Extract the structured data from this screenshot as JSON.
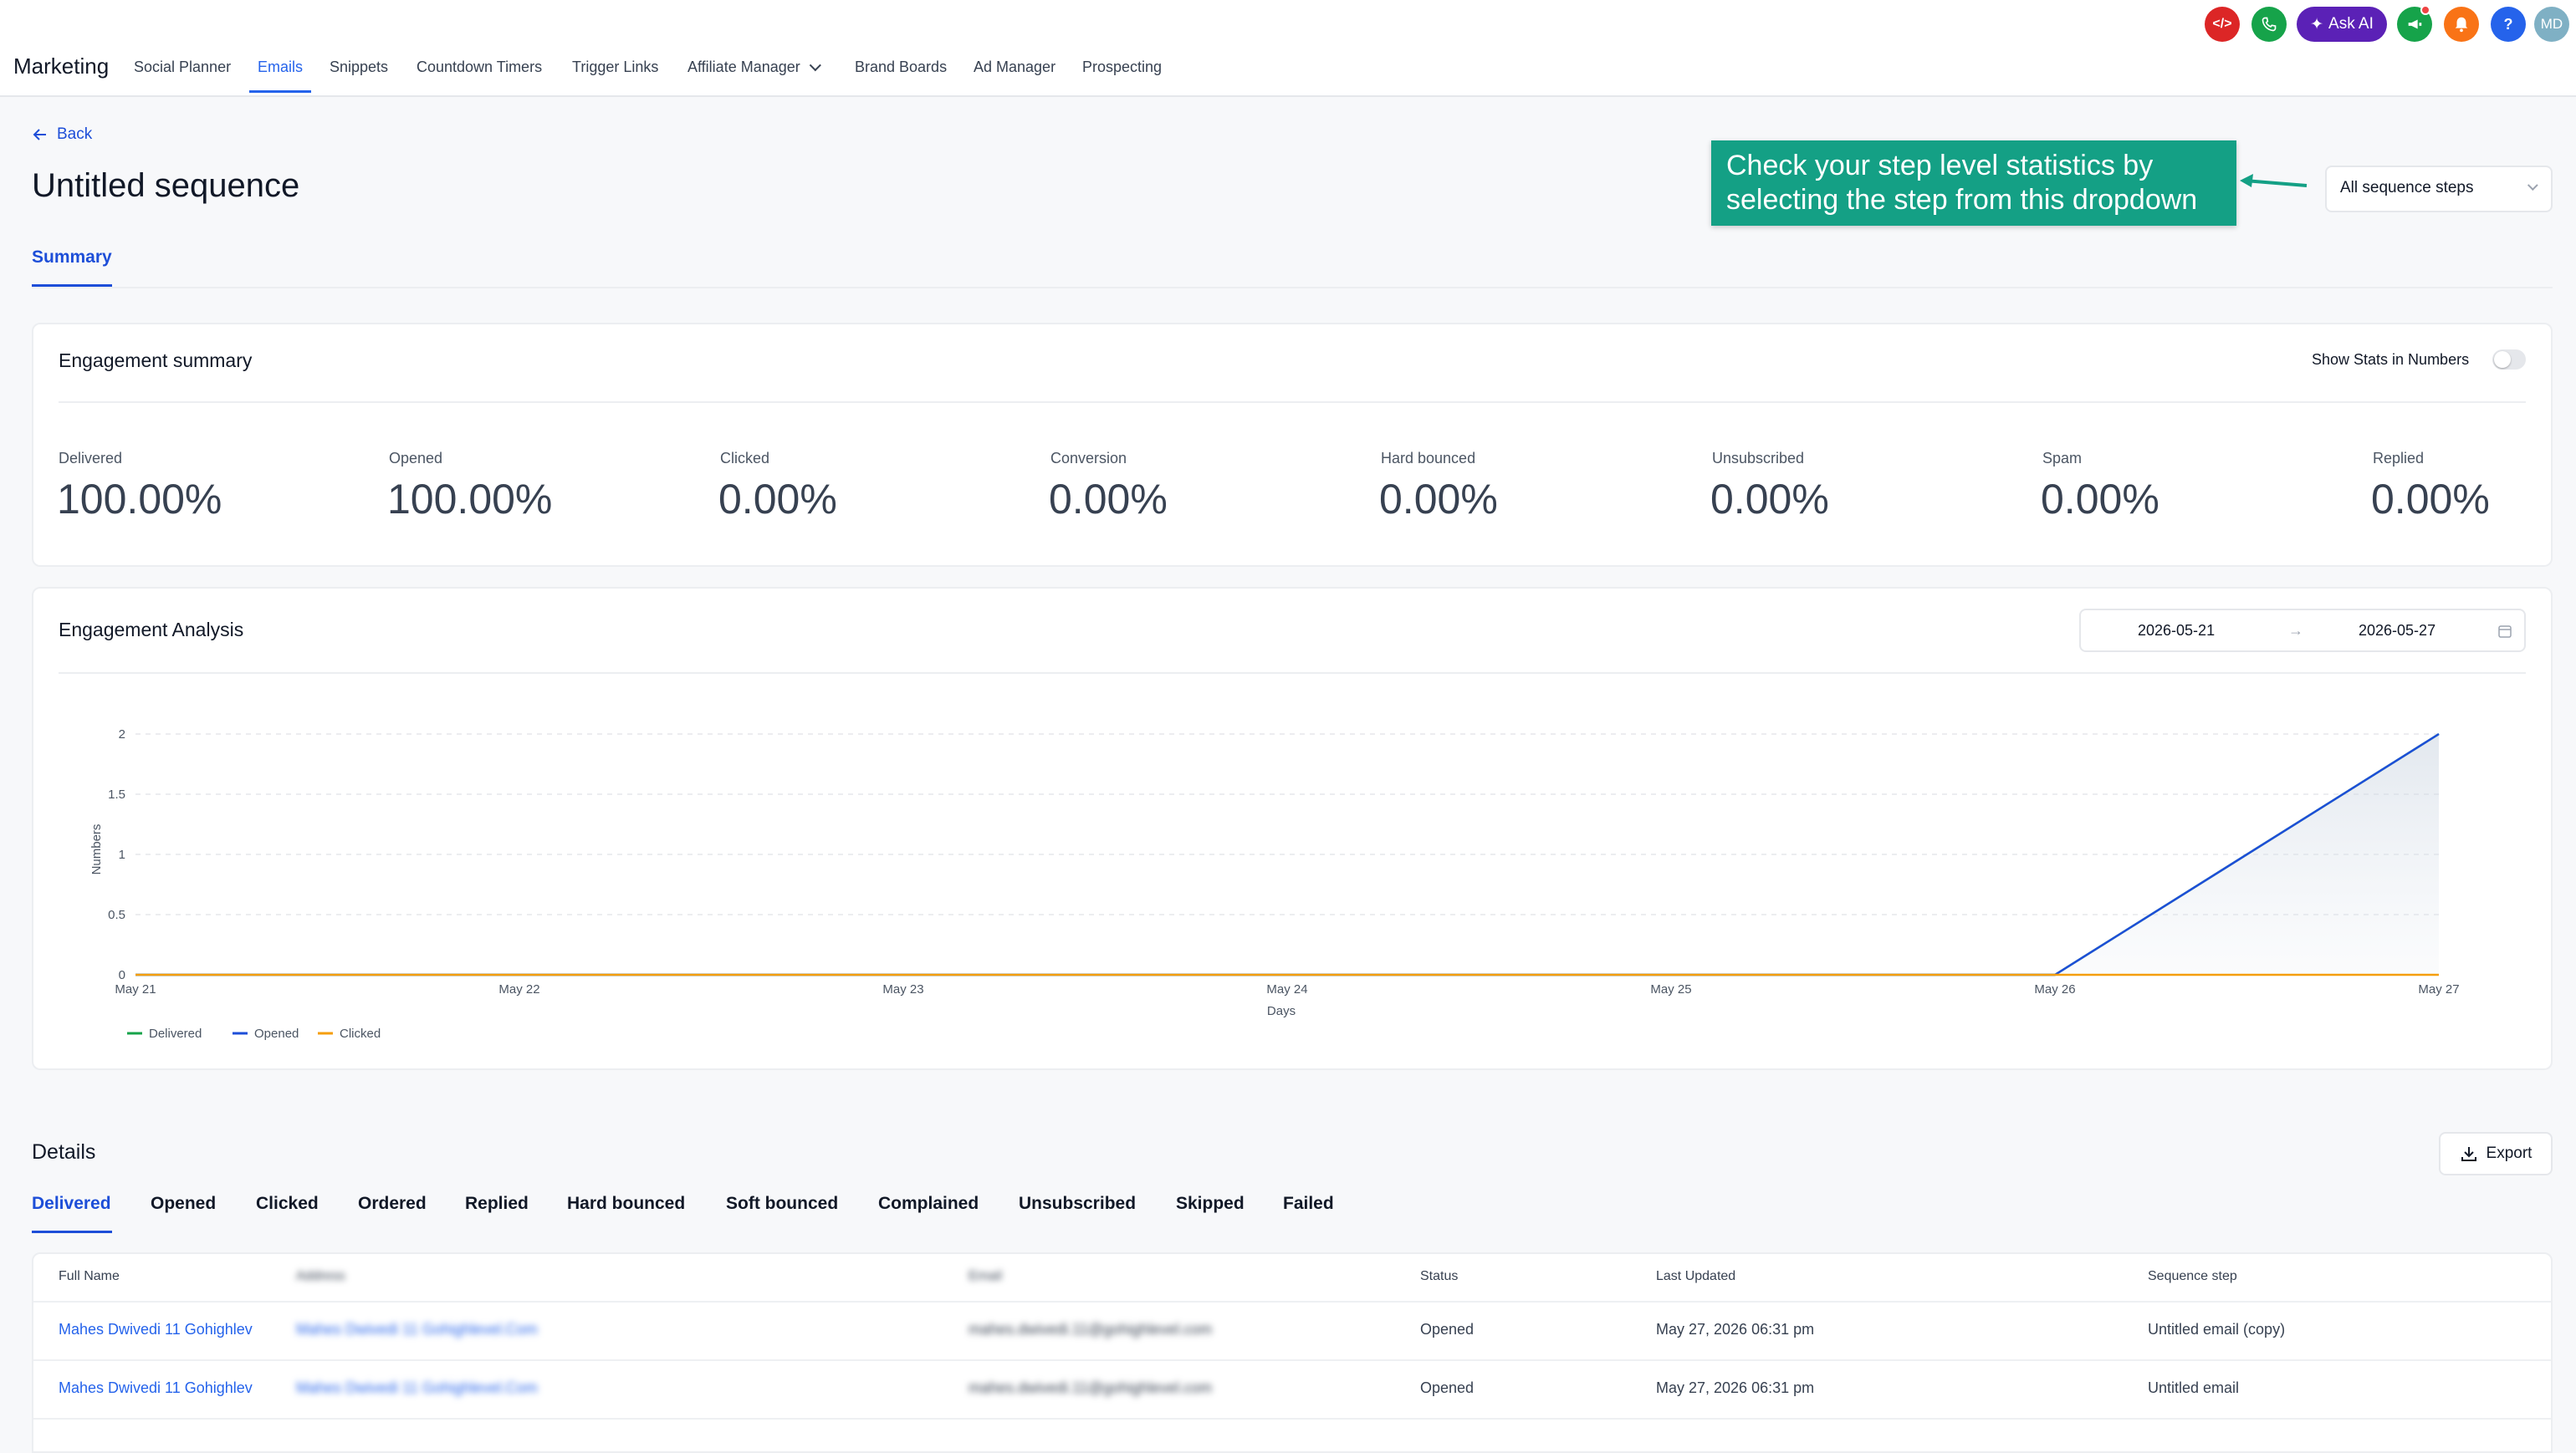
{
  "nav": {
    "brand": "Marketing",
    "items": [
      "Social Planner",
      "Emails",
      "Snippets",
      "Countdown Timers",
      "Trigger Links",
      "Affiliate Manager",
      "Brand Boards",
      "Ad Manager",
      "Prospecting"
    ],
    "active": "Emails",
    "ask_ai": "Ask AI",
    "avatar": "MD",
    "help": "?"
  },
  "header": {
    "back": "Back",
    "title": "Untitled sequence",
    "tab": "Summary",
    "callout": "Check your step level statistics by selecting the step from this dropdown",
    "step_select": "All sequence steps"
  },
  "summary": {
    "title": "Engagement summary",
    "toggle_label": "Show Stats in Numbers",
    "stats": [
      {
        "label": "Delivered",
        "value": "100.00%"
      },
      {
        "label": "Opened",
        "value": "100.00%"
      },
      {
        "label": "Clicked",
        "value": "0.00%"
      },
      {
        "label": "Conversion",
        "value": "0.00%"
      },
      {
        "label": "Hard bounced",
        "value": "0.00%"
      },
      {
        "label": "Unsubscribed",
        "value": "0.00%"
      },
      {
        "label": "Spam",
        "value": "0.00%"
      },
      {
        "label": "Replied",
        "value": "0.00%"
      }
    ]
  },
  "analysis": {
    "title": "Engagement Analysis",
    "date_from": "2026-05-21",
    "date_to": "2026-05-27"
  },
  "chart_data": {
    "type": "area",
    "x": [
      "May 21",
      "May 22",
      "May 23",
      "May 24",
      "May 25",
      "May 26",
      "May 27"
    ],
    "xlabel": "Days",
    "ylabel": "Numbers",
    "ylim": [
      0,
      2
    ],
    "yticks": [
      "0",
      "0.5",
      "1",
      "1.5",
      "2"
    ],
    "grid": true,
    "legend_position": "bottom-left",
    "series": [
      {
        "name": "Delivered",
        "color": "#16a34a",
        "values": [
          0,
          0,
          0,
          0,
          0,
          0,
          2
        ]
      },
      {
        "name": "Opened",
        "color": "#1d4ed8",
        "values": [
          0,
          0,
          0,
          0,
          0,
          0,
          2
        ]
      },
      {
        "name": "Clicked",
        "color": "#f59e0b",
        "values": [
          0,
          0,
          0,
          0,
          0,
          0,
          0
        ]
      }
    ]
  },
  "details": {
    "title": "Details",
    "export": "Export",
    "tabs": [
      "Delivered",
      "Opened",
      "Clicked",
      "Ordered",
      "Replied",
      "Hard bounced",
      "Soft bounced",
      "Complained",
      "Unsubscribed",
      "Skipped",
      "Failed"
    ],
    "active_tab": "Delivered",
    "columns": [
      "Full Name",
      "Address",
      "Email",
      "Status",
      "Last Updated",
      "Sequence step"
    ],
    "rows": [
      {
        "name": "Mahes Dwivedi 11 Gohighlev",
        "address": "Mahes Dwivedi 11 Gohighlevel.Com",
        "email": "mahes.dwivedi.11@gohighlevel.com",
        "status": "Opened",
        "updated": "May 27, 2026 06:31 pm",
        "step": "Untitled email (copy)"
      },
      {
        "name": "Mahes Dwivedi 11 Gohighlev",
        "address": "Mahes Dwivedi 11 Gohighlevel.Com",
        "email": "mahes.dwivedi.11@gohighlevel.com",
        "status": "Opened",
        "updated": "May 27, 2026 06:31 pm",
        "step": "Untitled email"
      }
    ]
  }
}
